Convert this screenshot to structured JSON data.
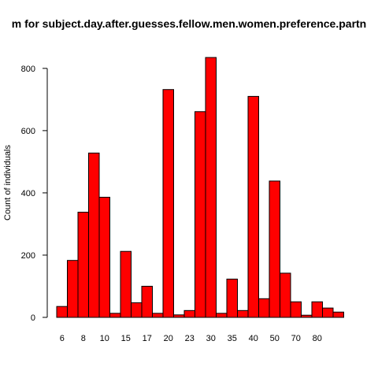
{
  "chart_data": {
    "type": "bar",
    "title": "m for subject.day.after.guesses.fellow.men.women.preference.partn",
    "xlabel": "",
    "ylabel": "Count of individuals",
    "ylim": [
      0,
      850
    ],
    "y_ticks": [
      0,
      200,
      400,
      600,
      800
    ],
    "x_tick_labels": [
      "6",
      "8",
      "10",
      "15",
      "17",
      "20",
      "23",
      "30",
      "35",
      "40",
      "50",
      "70",
      "80"
    ],
    "values": [
      35,
      183,
      338,
      528,
      386,
      13,
      212,
      47,
      100,
      13,
      732,
      8,
      22,
      661,
      835,
      13,
      123,
      22,
      710,
      60,
      438,
      142,
      50,
      7,
      50,
      30,
      17
    ],
    "bar_color": "#ff0000",
    "grid": false
  }
}
